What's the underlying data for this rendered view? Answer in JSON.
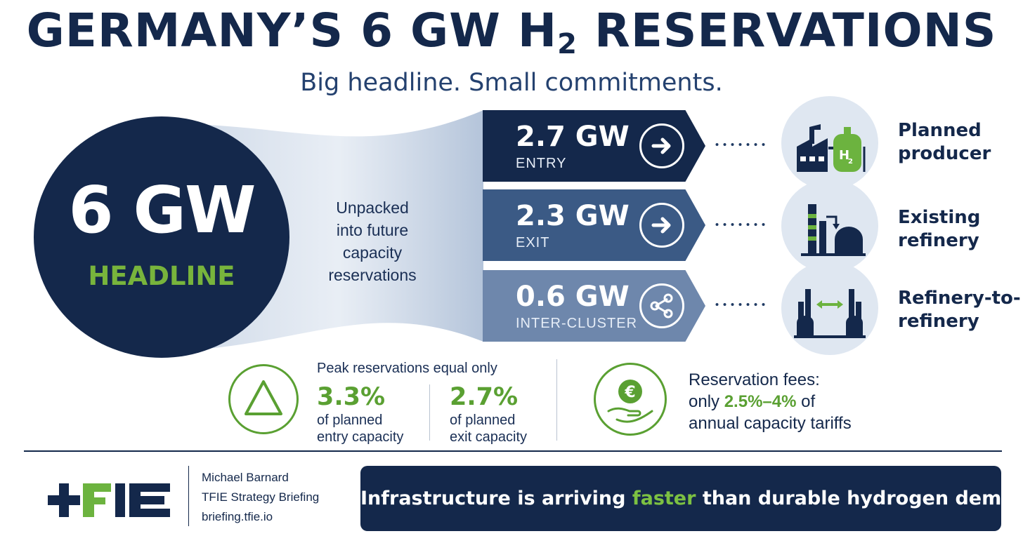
{
  "header": {
    "title_main": "GERMANY’S 6 GW H",
    "title_subscript": "2",
    "title_tail": " RESERVATIONS",
    "subtitle": "Big headline. Small commitments."
  },
  "headline": {
    "value": "6 GW",
    "label": "HEADLINE"
  },
  "unpacked_lines": [
    "Unpacked",
    "into future",
    "capacity",
    "reservations"
  ],
  "reservations": [
    {
      "value": "2.7 GW",
      "label": "ENTRY",
      "icon": "arrow-right-icon",
      "color": "#14284b",
      "facility_icon": "hydrogen-factory-icon",
      "facility_lines": [
        "Planned",
        "producer"
      ]
    },
    {
      "value": "2.3 GW",
      "label": "EXIT",
      "icon": "arrow-right-icon",
      "color": "#3b5a85",
      "facility_icon": "refinery-icon",
      "facility_lines": [
        "Existing",
        "refinery"
      ]
    },
    {
      "value": "0.6 GW",
      "label": "INTER-CLUSTER",
      "icon": "share-network-icon",
      "color": "#6e87ac",
      "facility_icon": "refinery-to-refinery-icon",
      "facility_lines": [
        "Refinery-to-",
        "refinery"
      ]
    }
  ],
  "peak": {
    "icon": "delta-triangle-icon",
    "heading": "Peak reservations equal only",
    "stats": [
      {
        "value": "3.3%",
        "lines": [
          "of planned",
          "entry capacity"
        ]
      },
      {
        "value": "2.7%",
        "lines": [
          "of planned",
          "exit capacity"
        ]
      }
    ]
  },
  "fees": {
    "icon": "euro-hand-icon",
    "line1": "Reservation fees:",
    "line2_prefix": "only ",
    "line2_highlight": "2.5%–4%",
    "line2_suffix": " of",
    "line3": "annual capacity tariffs"
  },
  "footer": {
    "logo_icon": "tfie-logo",
    "author_lines": [
      "Michael Barnard",
      "TFIE Strategy Briefing",
      "briefing.tfie.io"
    ],
    "banner_prefix": "Infrastructure is arriving ",
    "banner_highlight": "faster",
    "banner_suffix": " than durable hydrogen demand."
  },
  "colors": {
    "navy": "#14284b",
    "green": "#5aa032",
    "light_green": "#7cc142",
    "pale_blue": "#dfe7f1"
  }
}
